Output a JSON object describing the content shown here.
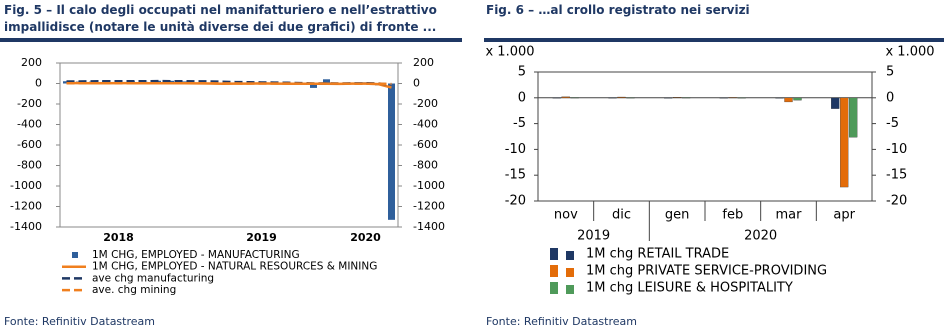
{
  "chart_data": [
    {
      "type": "combo",
      "title": "Fig. 5 – Il calo degli occupati nel manifatturiero e nell’estrattivo impallidisce (notare le unità diverse dei due grafici) di fronte ...",
      "source": "Fonte: Refinitiv Datastream",
      "categories": [
        null,
        null,
        null,
        null,
        "2018",
        null,
        null,
        null,
        null,
        null,
        null,
        null,
        null,
        null,
        null,
        "2019",
        null,
        null,
        null,
        null,
        null,
        null,
        null,
        "2020",
        null,
        null
      ],
      "ylim": [
        -1400,
        200
      ],
      "yticks": [
        200,
        0,
        -200,
        -400,
        -600,
        -800,
        -1000,
        -1200,
        -1400
      ],
      "y2lim": [
        -1400,
        200
      ],
      "y2ticks": [
        200,
        0,
        -200,
        -400,
        -600,
        -800,
        -1000,
        -1200,
        -1400
      ],
      "series": [
        {
          "name": "1M CHG, EMPLOYED - MANUFACTURING",
          "style": "bar",
          "color": "#2f5f9b",
          "values": [
            22,
            19,
            18,
            32,
            29,
            21,
            16,
            27,
            26,
            20,
            8,
            1,
            -3,
            3,
            0,
            10,
            12,
            0,
            -2,
            -43,
            41,
            -12,
            10,
            12,
            -18,
            -1330
          ]
        },
        {
          "name": "1M CHG, EMPLOYED - NATURAL RESOURCES & MINING",
          "style": "line",
          "color": "#f07f1e",
          "axis": "y2",
          "values": [
            5,
            4,
            3,
            2,
            4,
            3,
            3,
            2,
            3,
            2,
            1,
            0,
            -2,
            -1,
            -1,
            1,
            -1,
            -2,
            -3,
            -2,
            -3,
            -4,
            -1,
            -1,
            -6,
            -40
          ]
        },
        {
          "name": "ave chg manufacturing",
          "style": "dashed",
          "color": "#1f3864",
          "values": [
            20,
            20,
            21,
            22,
            22,
            22,
            22,
            23,
            22,
            22,
            21,
            20,
            17,
            14,
            12,
            10,
            9,
            7,
            4,
            0,
            1,
            0,
            1,
            2,
            0,
            -10
          ]
        },
        {
          "name": "ave. chg mining",
          "style": "dashed",
          "color": "#f07f1e",
          "axis": "y2",
          "values": [
            3,
            3,
            3,
            3,
            3,
            3,
            3,
            3,
            3,
            3,
            2,
            2,
            1,
            1,
            0,
            0,
            0,
            0,
            -1,
            -1,
            -1,
            -1,
            -2,
            -2,
            -2,
            -5
          ]
        }
      ]
    },
    {
      "type": "bar",
      "title": "Fig. 6 – …al crollo registrato nei servizi",
      "source": "Fonte: Refinitiv Datastream",
      "unit_label": "x 1.000",
      "categories": [
        "nov",
        "dic",
        "gen",
        "feb",
        "mar",
        "apr"
      ],
      "year_labels": [
        "2019",
        null,
        "2020",
        null,
        null,
        null
      ],
      "ylim": [
        -20,
        5
      ],
      "yticks": [
        5,
        0,
        -5,
        -10,
        -15,
        -20
      ],
      "y2lim": [
        -20,
        5
      ],
      "y2ticks": [
        5,
        0,
        -5,
        -10,
        -15,
        -20
      ],
      "series": [
        {
          "name": "1M chg RETAIL TRADE",
          "color": "#1f3864",
          "values": [
            0.02,
            0.03,
            -0.01,
            0.01,
            -0.05,
            -2.1
          ]
        },
        {
          "name": "1M chg PRIVATE SERVICE-PROVIDING",
          "color": "#e36c09",
          "values": [
            0.2,
            0.15,
            0.1,
            0.07,
            -0.8,
            -17.3
          ]
        },
        {
          "name": "1M chg LEISURE & HOSPITALITY",
          "color": "#4f9a5a",
          "values": [
            0.05,
            0.04,
            0.05,
            0.03,
            -0.46,
            -7.65
          ]
        }
      ]
    }
  ]
}
